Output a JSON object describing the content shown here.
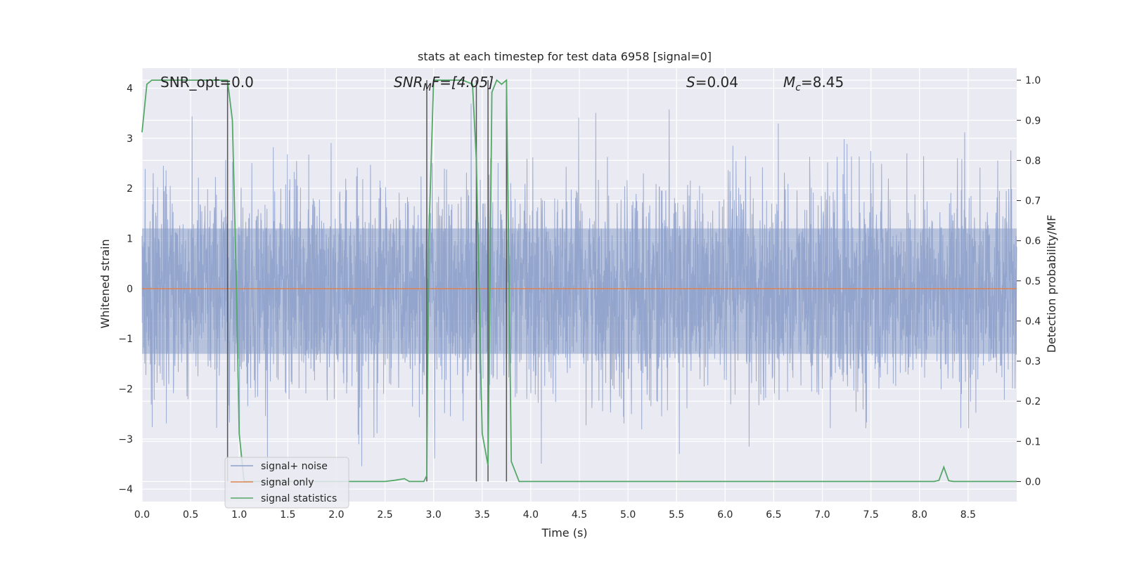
{
  "chart_data": {
    "type": "line",
    "title": "stats at each timestep for test data 6958 [signal=0]",
    "xlabel": "Time (s)",
    "ylabel": "Whitened strain",
    "y2label": "Detection probability/MF",
    "xlim": [
      0,
      9
    ],
    "ylim": [
      -4.25,
      4.4
    ],
    "y2lim": [
      -0.05,
      1.03
    ],
    "x_ticks": [
      "0.0",
      "0.5",
      "1.0",
      "1.5",
      "2.0",
      "2.5",
      "3.0",
      "3.5",
      "4.0",
      "4.5",
      "5.0",
      "5.5",
      "6.0",
      "6.5",
      "7.0",
      "7.5",
      "8.0",
      "8.5"
    ],
    "y_ticks": [
      "4",
      "3",
      "2",
      "1",
      "0",
      "−1",
      "−2",
      "−3",
      "−4"
    ],
    "y2_ticks": [
      "1.0",
      "0.9",
      "0.8",
      "0.7",
      "0.6",
      "0.5",
      "0.4",
      "0.3",
      "0.2",
      "0.1",
      "0.0"
    ],
    "grid": true,
    "legend_position": "bottom-left",
    "annotations": {
      "snr_opt": "SNR_opt=0.0",
      "snr_mf_italic": "SNR",
      "snr_mf_sub": "M",
      "snr_mf_rest": "F=[4.05]",
      "s_italic": "S",
      "s_rest": "=0.04",
      "mc_italic": "M",
      "mc_sub": "c",
      "mc_rest": "=8.45"
    },
    "vlines_x": [
      0.88,
      2.93,
      3.44,
      3.56,
      3.75
    ],
    "noise_envelope": {
      "description_free": true,
      "dense_band": [
        -1.3,
        1.2
      ],
      "peak_max": 4.0,
      "peak_min": -3.7
    },
    "series": [
      {
        "name": "signal+ noise",
        "color": "#8da0cb",
        "render": "dense_noise"
      },
      {
        "name": "signal only",
        "color": "#dd8452",
        "x": [
          0,
          9
        ],
        "y": [
          0,
          0
        ]
      },
      {
        "name": "signal statistics",
        "color": "#55a868",
        "x": [
          0.0,
          0.05,
          0.1,
          0.2,
          0.5,
          0.85,
          0.88,
          0.93,
          0.97,
          1.0,
          1.05,
          1.1,
          2.5,
          2.6,
          2.7,
          2.75,
          2.9,
          2.93,
          2.95,
          3.0,
          3.3,
          3.4,
          3.44,
          3.5,
          3.56,
          3.6,
          3.65,
          3.7,
          3.75,
          3.8,
          3.88,
          8.15,
          8.2,
          8.25,
          8.3,
          8.35,
          9.0
        ],
        "y": [
          0.87,
          0.99,
          1.0,
          1.0,
          1.0,
          1.0,
          1.0,
          0.9,
          0.5,
          0.12,
          0.0,
          0.0,
          0.0,
          0.003,
          0.007,
          0.0,
          0.0,
          0.015,
          0.6,
          1.0,
          1.0,
          0.99,
          0.8,
          0.12,
          0.04,
          0.97,
          1.0,
          0.99,
          1.0,
          0.05,
          0.0,
          0.0,
          0.003,
          0.036,
          0.002,
          0.0,
          0.0
        ]
      }
    ]
  }
}
